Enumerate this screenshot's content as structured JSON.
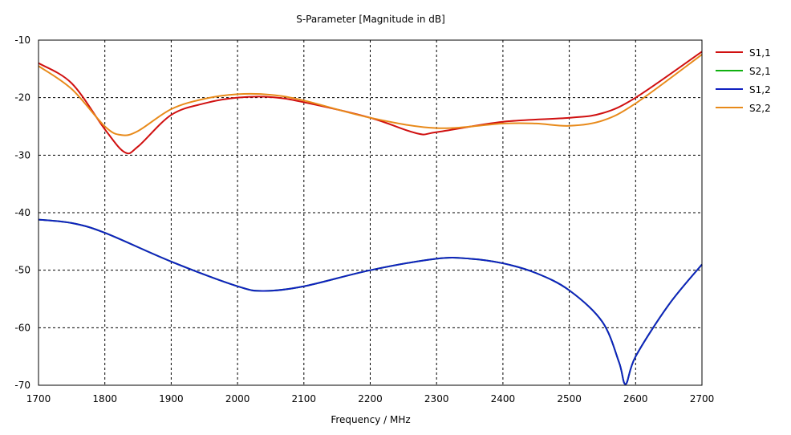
{
  "chart_data": {
    "type": "line",
    "title": "S-Parameter [Magnitude in dB]",
    "xlabel": "Frequency / MHz",
    "ylabel": "",
    "xlim": [
      1700,
      2700
    ],
    "ylim": [
      -70,
      -10
    ],
    "xticks": [
      1700,
      1800,
      1900,
      2000,
      2100,
      2200,
      2300,
      2400,
      2500,
      2600,
      2700
    ],
    "yticks": [
      -10,
      -20,
      -30,
      -40,
      -50,
      -60,
      -70
    ],
    "grid": true,
    "legend_position": "right",
    "series": [
      {
        "name": "S1,1",
        "color": "#d01010",
        "x": [
          1700,
          1750,
          1800,
          1830,
          1850,
          1900,
          1950,
          2000,
          2050,
          2100,
          2200,
          2270,
          2300,
          2400,
          2500,
          2550,
          2600,
          2700
        ],
        "y": [
          -14,
          -17.5,
          -25.5,
          -29.5,
          -28.5,
          -23,
          -21,
          -20,
          -19.9,
          -20.8,
          -23.5,
          -26.2,
          -26,
          -24.2,
          -23.5,
          -22.7,
          -20,
          -12
        ]
      },
      {
        "name": "S2,1",
        "color": "#10b010",
        "x": [
          1700,
          1750,
          1800,
          1900,
          2000,
          2040,
          2100,
          2200,
          2300,
          2350,
          2400,
          2450,
          2500,
          2550,
          2575,
          2585,
          2600,
          2650,
          2700
        ],
        "y": [
          -41.2,
          -41.8,
          -43.5,
          -48.5,
          -52.8,
          -53.6,
          -52.8,
          -50,
          -48,
          -48,
          -48.8,
          -50.5,
          -53.5,
          -59,
          -66,
          -69.8,
          -65,
          -56,
          -49
        ]
      },
      {
        "name": "S1,2",
        "color": "#1020c0",
        "x": [
          1700,
          1750,
          1800,
          1900,
          2000,
          2040,
          2100,
          2200,
          2300,
          2350,
          2400,
          2450,
          2500,
          2550,
          2575,
          2585,
          2600,
          2650,
          2700
        ],
        "y": [
          -41.2,
          -41.8,
          -43.5,
          -48.5,
          -52.8,
          -53.6,
          -52.8,
          -50,
          -48,
          -48,
          -48.8,
          -50.5,
          -53.5,
          -59,
          -66,
          -69.8,
          -65,
          -56,
          -49
        ]
      },
      {
        "name": "S2,2",
        "color": "#e88a1a",
        "x": [
          1700,
          1750,
          1800,
          1825,
          1850,
          1900,
          1950,
          2000,
          2050,
          2100,
          2200,
          2300,
          2400,
          2450,
          2500,
          2550,
          2600,
          2700
        ],
        "y": [
          -14.5,
          -18.5,
          -25,
          -26.5,
          -25.8,
          -22,
          -20.2,
          -19.4,
          -19.5,
          -20.5,
          -23.5,
          -25.3,
          -24.5,
          -24.5,
          -24.9,
          -24,
          -21,
          -12.5
        ]
      }
    ]
  }
}
